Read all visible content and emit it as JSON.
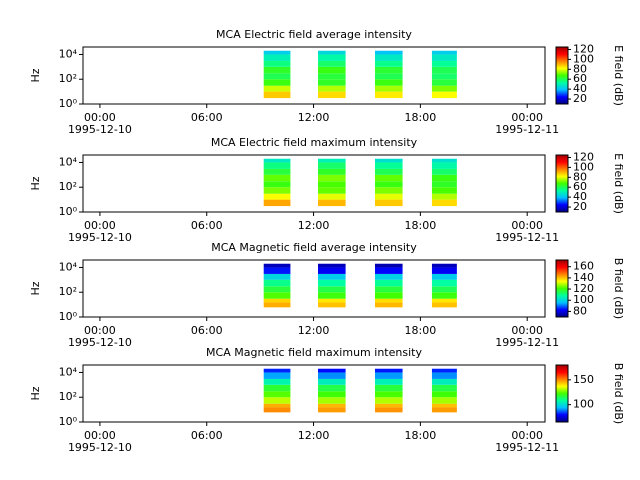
{
  "chart_data": [
    {
      "type": "spectrogram",
      "title": "MCA  Electric field average intensity",
      "ylabel": "Hz",
      "log_y": true,
      "ylim": [
        1,
        40000
      ],
      "yticks": [
        {
          "value": 1,
          "label": "10⁰"
        },
        {
          "value": 100,
          "label": "10²"
        },
        {
          "value": 10000,
          "label": "10⁴"
        }
      ],
      "xlim": [
        -0.95,
        25
      ],
      "xticks": [
        {
          "value": 0,
          "label": "00:00"
        },
        {
          "value": 6,
          "label": "06:00"
        },
        {
          "value": 12,
          "label": "12:00"
        },
        {
          "value": 18,
          "label": "18:00"
        },
        {
          "value": 24,
          "label": "00:00"
        }
      ],
      "xtick_dates": [
        {
          "value": 0,
          "label": "1995-12-10"
        },
        {
          "value": 24,
          "label": "1995-12-11"
        }
      ],
      "x_intervals": [
        [
          9.2,
          10.7
        ],
        [
          12.25,
          13.8
        ],
        [
          15.45,
          17
        ],
        [
          18.65,
          20.05
        ]
      ],
      "freq_edges": [
        3,
        10,
        30,
        100,
        300,
        1000,
        3000,
        10000,
        20000
      ],
      "z": [
        [
          88,
          78,
          66,
          60,
          64,
          56,
          50,
          42
        ],
        [
          86,
          76,
          64,
          62,
          66,
          58,
          52,
          44
        ],
        [
          84,
          75,
          66,
          60,
          63,
          55,
          48,
          40
        ],
        [
          82,
          72,
          62,
          58,
          60,
          54,
          48,
          42
        ]
      ],
      "colorbar_label": "E field (dB)",
      "clim": [
        10,
        125
      ],
      "cticks": [
        20,
        40,
        60,
        80,
        100,
        120
      ],
      "colormap": [
        "#00007f",
        "#0000ff",
        "#00c0ff",
        "#00ffa0",
        "#40ff00",
        "#ffff00",
        "#ff8000",
        "#ff0000",
        "#a00000"
      ]
    },
    {
      "type": "spectrogram",
      "title": "MCA  Electric field maximum intensity",
      "ylabel": "Hz",
      "log_y": true,
      "ylim": [
        1,
        40000
      ],
      "yticks": [
        {
          "value": 1,
          "label": "10⁰"
        },
        {
          "value": 100,
          "label": "10²"
        },
        {
          "value": 10000,
          "label": "10⁴"
        }
      ],
      "xlim": [
        -0.95,
        25
      ],
      "xticks": [
        {
          "value": 0,
          "label": "00:00"
        },
        {
          "value": 6,
          "label": "06:00"
        },
        {
          "value": 12,
          "label": "12:00"
        },
        {
          "value": 18,
          "label": "18:00"
        },
        {
          "value": 24,
          "label": "00:00"
        }
      ],
      "xtick_dates": [
        {
          "value": 0,
          "label": "1995-12-10"
        },
        {
          "value": 24,
          "label": "1995-12-11"
        }
      ],
      "x_intervals": [
        [
          9.2,
          10.7
        ],
        [
          12.25,
          13.8
        ],
        [
          15.45,
          17
        ],
        [
          18.65,
          20.05
        ]
      ],
      "freq_edges": [
        3,
        10,
        30,
        100,
        300,
        1000,
        3000,
        10000,
        20000
      ],
      "z": [
        [
          92,
          82,
          72,
          66,
          70,
          62,
          56,
          48
        ],
        [
          90,
          80,
          70,
          68,
          72,
          64,
          58,
          50
        ],
        [
          88,
          80,
          72,
          66,
          70,
          60,
          54,
          46
        ],
        [
          86,
          76,
          68,
          64,
          66,
          58,
          52,
          46
        ]
      ],
      "colorbar_label": "E field (dB)",
      "clim": [
        10,
        125
      ],
      "cticks": [
        20,
        40,
        60,
        80,
        100,
        120
      ],
      "colormap": [
        "#00007f",
        "#0000ff",
        "#00c0ff",
        "#00ffa0",
        "#40ff00",
        "#ffff00",
        "#ff8000",
        "#ff0000",
        "#a00000"
      ]
    },
    {
      "type": "spectrogram",
      "title": "MCA  Magnetic field average intensity",
      "ylabel": "Hz",
      "log_y": true,
      "ylim": [
        1,
        40000
      ],
      "yticks": [
        {
          "value": 1,
          "label": "10⁰"
        },
        {
          "value": 100,
          "label": "10²"
        },
        {
          "value": 10000,
          "label": "10⁴"
        }
      ],
      "xlim": [
        -0.95,
        25
      ],
      "xticks": [
        {
          "value": 0,
          "label": "00:00"
        },
        {
          "value": 6,
          "label": "06:00"
        },
        {
          "value": 12,
          "label": "12:00"
        },
        {
          "value": 18,
          "label": "18:00"
        },
        {
          "value": 24,
          "label": "00:00"
        }
      ],
      "xtick_dates": [
        {
          "value": 0,
          "label": "1995-12-10"
        },
        {
          "value": 24,
          "label": "1995-12-11"
        }
      ],
      "x_intervals": [
        [
          9.2,
          10.7
        ],
        [
          12.25,
          13.8
        ],
        [
          15.45,
          17
        ],
        [
          18.65,
          20.05
        ]
      ],
      "freq_edges": [
        6,
        15,
        30,
        100,
        300,
        1000,
        3000,
        10000,
        20000
      ],
      "z": [
        [
          142,
          138,
          122,
          116,
          110,
          100,
          84,
          76
        ],
        [
          140,
          136,
          120,
          115,
          108,
          98,
          82,
          76
        ],
        [
          141,
          137,
          121,
          116,
          109,
          99,
          83,
          75
        ],
        [
          140,
          136,
          120,
          114,
          108,
          98,
          82,
          76
        ]
      ],
      "colorbar_label": "B field (dB)",
      "clim": [
        70,
        172
      ],
      "cticks": [
        80,
        100,
        120,
        140,
        160
      ],
      "colormap": [
        "#00007f",
        "#0000ff",
        "#00c0ff",
        "#00ffa0",
        "#40ff00",
        "#ffff00",
        "#ff8000",
        "#ff0000",
        "#a00000"
      ]
    },
    {
      "type": "spectrogram",
      "title": "MCA  Magnetic field maximum intensity",
      "ylabel": "Hz",
      "log_y": true,
      "ylim": [
        1,
        40000
      ],
      "yticks": [
        {
          "value": 1,
          "label": "10⁰"
        },
        {
          "value": 100,
          "label": "10²"
        },
        {
          "value": 10000,
          "label": "10⁴"
        }
      ],
      "xlim": [
        -0.95,
        25
      ],
      "xticks": [
        {
          "value": 0,
          "label": "00:00"
        },
        {
          "value": 6,
          "label": "06:00"
        },
        {
          "value": 12,
          "label": "12:00"
        },
        {
          "value": 18,
          "label": "18:00"
        },
        {
          "value": 24,
          "label": "00:00"
        }
      ],
      "xtick_dates": [
        {
          "value": 0,
          "label": "1995-12-10"
        },
        {
          "value": 24,
          "label": "1995-12-11"
        }
      ],
      "x_intervals": [
        [
          9.2,
          10.7
        ],
        [
          12.25,
          13.8
        ],
        [
          15.45,
          17
        ],
        [
          18.65,
          20.05
        ]
      ],
      "freq_edges": [
        6,
        15,
        30,
        100,
        300,
        1000,
        3000,
        10000,
        20000
      ],
      "z": [
        [
          150,
          146,
          132,
          124,
          118,
          106,
          92,
          82
        ],
        [
          148,
          145,
          130,
          122,
          116,
          104,
          90,
          80
        ],
        [
          149,
          145,
          131,
          123,
          117,
          105,
          91,
          81
        ],
        [
          148,
          144,
          130,
          122,
          116,
          104,
          90,
          82
        ]
      ],
      "colorbar_label": "B field (dB)",
      "clim": [
        65,
        180
      ],
      "cticks": [
        100,
        150
      ],
      "colormap": [
        "#00007f",
        "#0000ff",
        "#00c0ff",
        "#00ffa0",
        "#40ff00",
        "#ffff00",
        "#ff8000",
        "#ff0000",
        "#a00000"
      ]
    }
  ]
}
